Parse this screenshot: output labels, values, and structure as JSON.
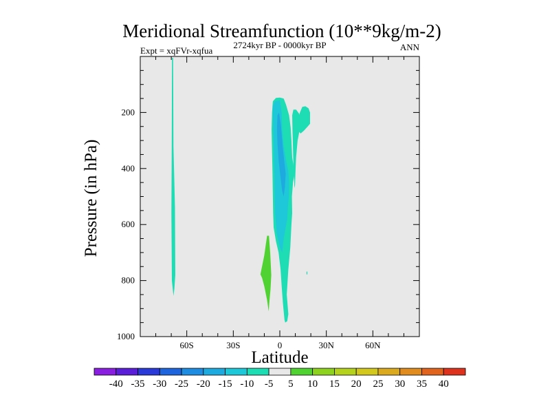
{
  "chart_data": {
    "type": "contour",
    "title": "Meridional Streamfunction (10**9kg/m-2)",
    "subtitle_left": "Expt = xqFVr-xqfua",
    "subtitle_center": "2724kyr BP - 0000kyr BP",
    "subtitle_right": "ANN",
    "xlabel": "Latitude",
    "ylabel": "Pressure (in hPa)",
    "xlim": [
      -90,
      90
    ],
    "ylim": [
      1000,
      0
    ],
    "x_ticks": [
      {
        "value": -60,
        "label": "60S"
      },
      {
        "value": -30,
        "label": "30S"
      },
      {
        "value": 0,
        "label": "0"
      },
      {
        "value": 30,
        "label": "30N"
      },
      {
        "value": 60,
        "label": "60N"
      }
    ],
    "x_minor_step": 10,
    "y_ticks": [
      {
        "value": 200,
        "label": "200"
      },
      {
        "value": 400,
        "label": "400"
      },
      {
        "value": 600,
        "label": "600"
      },
      {
        "value": 800,
        "label": "800"
      },
      {
        "value": 1000,
        "label": "1000"
      }
    ],
    "y_minor_step": 50,
    "background_color": "#e8e8e8",
    "colorbar": {
      "labels": [
        "-40",
        "-35",
        "-30",
        "-25",
        "-20",
        "-15",
        "-10",
        "-5",
        "5",
        "10",
        "15",
        "20",
        "25",
        "30",
        "35",
        "40"
      ],
      "colors": [
        "#8a1ee0",
        "#5a1ed8",
        "#2a3ad8",
        "#1e64dc",
        "#1e8ce0",
        "#1eaade",
        "#1ec8d8",
        "#1edcb4",
        "#e8e8e8",
        "#50d232",
        "#8cd21e",
        "#b4d21e",
        "#d2c81e",
        "#dcaa1e",
        "#e08c1e",
        "#e0641e",
        "#dc321e"
      ]
    },
    "regions": [
      {
        "name": "sh-polar-filament",
        "color": "#1edcb4",
        "points": [
          [
            -69.5,
            5
          ],
          [
            -68.8,
            5
          ],
          [
            -68.6,
            320
          ],
          [
            -67.6,
            540
          ],
          [
            -67.4,
            780
          ],
          [
            -68.0,
            830
          ],
          [
            -68.6,
            855
          ],
          [
            -69.6,
            800
          ],
          [
            -69.9,
            560
          ],
          [
            -69.7,
            320
          ]
        ]
      },
      {
        "name": "main-cell-outer",
        "color": "#1edcb4",
        "points": [
          [
            -5,
            200
          ],
          [
            -4.5,
            160
          ],
          [
            -2.5,
            148
          ],
          [
            0,
            147
          ],
          [
            2.5,
            150
          ],
          [
            4,
            172
          ],
          [
            6,
            210
          ],
          [
            7,
            255
          ],
          [
            7.5,
            300
          ],
          [
            8,
            360
          ],
          [
            9,
            395
          ],
          [
            9.5,
            420
          ],
          [
            8.5,
            450
          ],
          [
            7.8,
            500
          ],
          [
            8,
            560
          ],
          [
            7.5,
            600
          ],
          [
            6.8,
            680
          ],
          [
            5.5,
            760
          ],
          [
            4.5,
            850
          ],
          [
            5.5,
            920
          ],
          [
            4.8,
            945
          ],
          [
            3.5,
            950
          ],
          [
            3.0,
            940
          ],
          [
            2.0,
            880
          ],
          [
            1.2,
            820
          ],
          [
            0.5,
            760
          ],
          [
            -0.8,
            700
          ],
          [
            -2.5,
            660
          ],
          [
            -4,
            610
          ],
          [
            -4.3,
            560
          ],
          [
            -4.5,
            500
          ],
          [
            -4.7,
            420
          ],
          [
            -5,
            340
          ],
          [
            -5.3,
            260
          ]
        ]
      },
      {
        "name": "nh-cell-a",
        "color": "#1edcb4",
        "points": [
          [
            8,
            210
          ],
          [
            8.8,
            190
          ],
          [
            10.5,
            190
          ],
          [
            12.5,
            205
          ],
          [
            13,
            240
          ],
          [
            12.8,
            260
          ],
          [
            12.2,
            280
          ],
          [
            11.5,
            300
          ],
          [
            11,
            330
          ],
          [
            10.5,
            360
          ],
          [
            10.2,
            400
          ],
          [
            9.8,
            460
          ],
          [
            9.4,
            470
          ],
          [
            9.2,
            430
          ],
          [
            8.8,
            390
          ],
          [
            8.5,
            330
          ],
          [
            8.2,
            270
          ]
        ]
      },
      {
        "name": "nh-cell-b",
        "color": "#1edcb4",
        "points": [
          [
            12,
            220
          ],
          [
            13,
            200
          ],
          [
            14.5,
            180
          ],
          [
            16.5,
            178
          ],
          [
            18.5,
            185
          ],
          [
            19.5,
            200
          ],
          [
            19.5,
            240
          ],
          [
            18,
            250
          ],
          [
            15.5,
            265
          ],
          [
            13.5,
            275
          ],
          [
            12.5,
            270
          ]
        ]
      },
      {
        "name": "nh-speck",
        "color": "#1edcb4",
        "points": [
          [
            17.2,
            768
          ],
          [
            17.8,
            768
          ],
          [
            17.8,
            778
          ],
          [
            17.2,
            778
          ]
        ]
      },
      {
        "name": "main-cell-mid",
        "color": "#1ec8d8",
        "points": [
          [
            -4.5,
            175
          ],
          [
            -3,
            160
          ],
          [
            0,
            157
          ],
          [
            1.2,
            200
          ],
          [
            1.5,
            260
          ],
          [
            2.5,
            320
          ],
          [
            4,
            370
          ],
          [
            5.5,
            410
          ],
          [
            6,
            450
          ],
          [
            5.8,
            500
          ],
          [
            5.2,
            540
          ],
          [
            4.8,
            580
          ],
          [
            3.5,
            620
          ],
          [
            2.5,
            650
          ],
          [
            1.5,
            700
          ],
          [
            0,
            680
          ],
          [
            -2,
            630
          ],
          [
            -3,
            560
          ],
          [
            -3.3,
            490
          ],
          [
            -3.5,
            420
          ],
          [
            -3.8,
            340
          ],
          [
            -4.2,
            260
          ],
          [
            -4.5,
            210
          ]
        ]
      },
      {
        "name": "main-cell-core",
        "color": "#1eaade",
        "points": [
          [
            -1.5,
            210
          ],
          [
            -0.5,
            200
          ],
          [
            0.8,
            250
          ],
          [
            1.8,
            320
          ],
          [
            3,
            380
          ],
          [
            3.8,
            420
          ],
          [
            3.2,
            470
          ],
          [
            2.5,
            500
          ],
          [
            1.5,
            480
          ],
          [
            0.2,
            420
          ],
          [
            -0.8,
            370
          ],
          [
            -1.5,
            310
          ],
          [
            -1.8,
            260
          ]
        ]
      },
      {
        "name": "sh-positive-cell",
        "color": "#50d232",
        "points": [
          [
            -8.2,
            640
          ],
          [
            -7,
            640
          ],
          [
            -6.2,
            700
          ],
          [
            -5.5,
            780
          ],
          [
            -6,
            830
          ],
          [
            -6.8,
            880
          ],
          [
            -7.2,
            910
          ],
          [
            -8.2,
            870
          ],
          [
            -10,
            820
          ],
          [
            -11.5,
            790
          ],
          [
            -12.5,
            778
          ],
          [
            -11.5,
            750
          ],
          [
            -10,
            710
          ],
          [
            -9,
            670
          ]
        ]
      }
    ]
  }
}
